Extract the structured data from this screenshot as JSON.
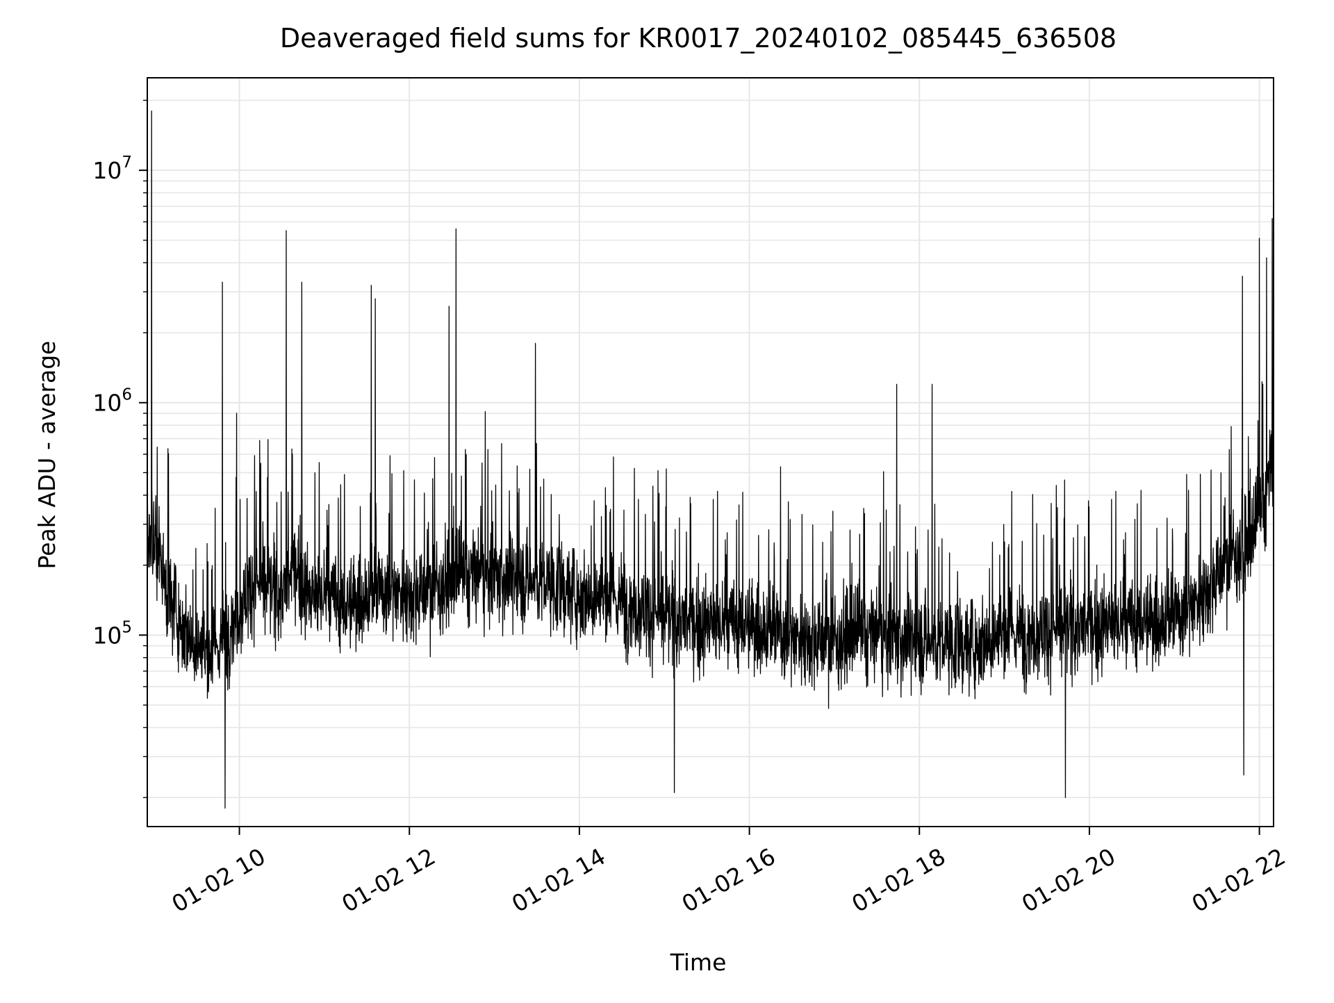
{
  "chart_data": {
    "type": "line",
    "title": "Deaveraged field sums for KR0017_20240102_085445_636508",
    "xlabel": "Time",
    "ylabel": "Peak ADU - average",
    "xlim": [
      "2024-01-02T08:55",
      "2024-01-02T22:10"
    ],
    "ylim": [
      15000,
      25000000
    ],
    "yscale": "log",
    "grid": true,
    "x_tick_labels": [
      "01-02 10",
      "01-02 12",
      "01-02 14",
      "01-02 16",
      "01-02 18",
      "01-02 20",
      "01-02 22"
    ],
    "x_ticks": [
      "2024-01-02T10:00",
      "2024-01-02T12:00",
      "2024-01-02T14:00",
      "2024-01-02T16:00",
      "2024-01-02T18:00",
      "2024-01-02T20:00",
      "2024-01-02T22:00"
    ],
    "y_tick_labels": [
      {
        "base": "10",
        "exp": "5",
        "value": 100000
      },
      {
        "base": "10",
        "exp": "6",
        "value": 1000000
      },
      {
        "base": "10",
        "exp": "7",
        "value": 10000000
      }
    ],
    "line_color": "#000000",
    "grid_color": "#e6e6e6",
    "series": [
      {
        "x": [
          "2024-01-02T08:55",
          "2024-01-02T09:00",
          "2024-01-02T09:05",
          "2024-01-02T09:10",
          "2024-01-02T09:20",
          "2024-01-02T09:30",
          "2024-01-02T09:40",
          "2024-01-02T09:50",
          "2024-01-02T10:00",
          "2024-01-02T10:10",
          "2024-01-02T10:20",
          "2024-01-02T10:30",
          "2024-01-02T10:40",
          "2024-01-02T10:50",
          "2024-01-02T11:00",
          "2024-01-02T11:15",
          "2024-01-02T11:30",
          "2024-01-02T11:45",
          "2024-01-02T12:00",
          "2024-01-02T12:15",
          "2024-01-02T12:30",
          "2024-01-02T12:45",
          "2024-01-02T13:00",
          "2024-01-02T13:30",
          "2024-01-02T14:00",
          "2024-01-02T14:30",
          "2024-01-02T15:00",
          "2024-01-02T15:30",
          "2024-01-02T16:00",
          "2024-01-02T16:30",
          "2024-01-02T17:00",
          "2024-01-02T17:30",
          "2024-01-02T18:00",
          "2024-01-02T18:30",
          "2024-01-02T19:00",
          "2024-01-02T19:30",
          "2024-01-02T20:00",
          "2024-01-02T20:30",
          "2024-01-02T21:00",
          "2024-01-02T21:20",
          "2024-01-02T21:40",
          "2024-01-02T21:55",
          "2024-01-02T22:05",
          "2024-01-02T22:10"
        ],
        "y": [
          300000,
          250000,
          200000,
          150000,
          110000,
          90000,
          80000,
          100000,
          130000,
          170000,
          160000,
          150000,
          200000,
          140000,
          150000,
          130000,
          150000,
          160000,
          150000,
          160000,
          170000,
          180000,
          180000,
          170000,
          150000,
          140000,
          120000,
          110000,
          110000,
          100000,
          95000,
          100000,
          95000,
          90000,
          100000,
          105000,
          110000,
          110000,
          120000,
          150000,
          220000,
          250000,
          400000,
          600000
        ]
      }
    ],
    "spikes": [
      {
        "x": "2024-01-02T08:58",
        "y": 18000000
      },
      {
        "x": "2024-01-02T09:48",
        "y": 3300000
      },
      {
        "x": "2024-01-02T09:58",
        "y": 900000
      },
      {
        "x": "2024-01-02T10:33",
        "y": 5500000
      },
      {
        "x": "2024-01-02T10:44",
        "y": 3300000
      },
      {
        "x": "2024-01-02T11:33",
        "y": 3200000
      },
      {
        "x": "2024-01-02T11:36",
        "y": 2800000
      },
      {
        "x": "2024-01-02T12:28",
        "y": 2600000
      },
      {
        "x": "2024-01-02T12:33",
        "y": 5600000
      },
      {
        "x": "2024-01-02T13:29",
        "y": 1800000
      },
      {
        "x": "2024-01-02T16:22",
        "y": 530000
      },
      {
        "x": "2024-01-02T17:44",
        "y": 1200000
      },
      {
        "x": "2024-01-02T18:09",
        "y": 1200000
      },
      {
        "x": "2024-01-02T21:48",
        "y": 3500000
      },
      {
        "x": "2024-01-02T22:00",
        "y": 5100000
      },
      {
        "x": "2024-01-02T22:05",
        "y": 4200000
      },
      {
        "x": "2024-01-02T22:09",
        "y": 6200000
      }
    ],
    "dips": [
      {
        "x": "2024-01-02T09:50",
        "y": 18000
      },
      {
        "x": "2024-01-02T15:07",
        "y": 21000
      },
      {
        "x": "2024-01-02T19:43",
        "y": 20000
      },
      {
        "x": "2024-01-02T21:49",
        "y": 25000
      }
    ]
  }
}
